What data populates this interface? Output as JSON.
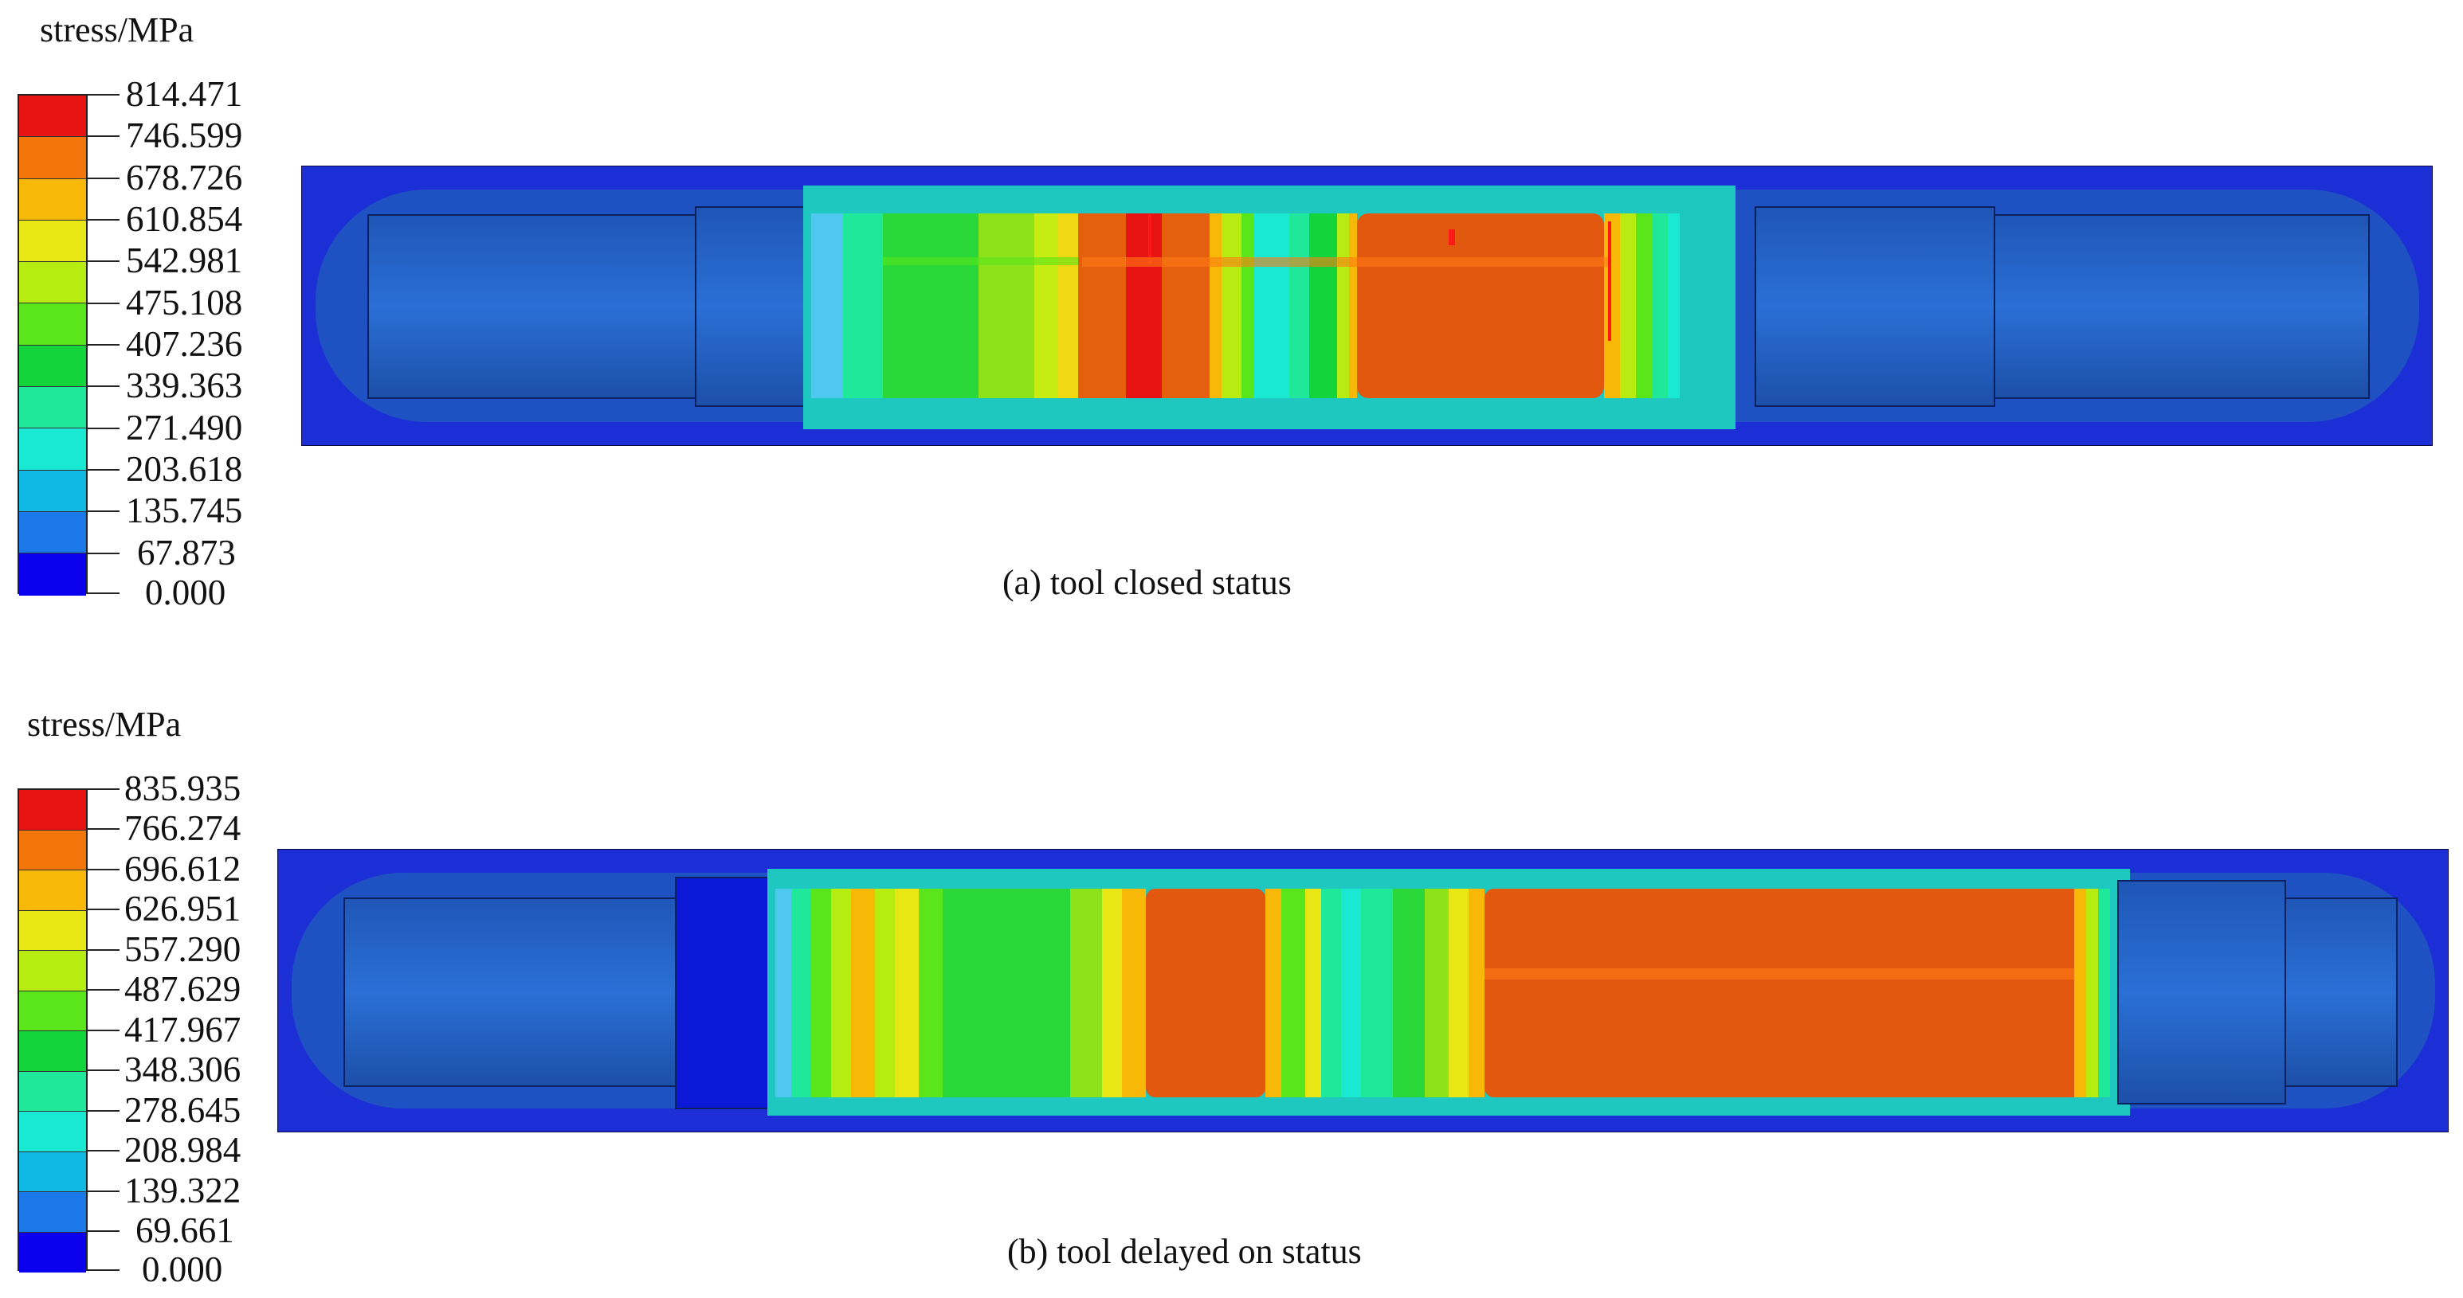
{
  "colors": {
    "scale": [
      "#0a00ee",
      "#0c3fe6",
      "#1a78e8",
      "#10b8e4",
      "#19e8d2",
      "#20e89a",
      "#13d43a",
      "#5ae61a",
      "#b6ec12",
      "#e8e614",
      "#f8b808",
      "#f2760a",
      "#e81414"
    ],
    "body_blue": "#1f47c8",
    "shaft_blue": "#1e5ab0",
    "deep_blue": "#0c18d8"
  },
  "panels": [
    {
      "legend_title": "stress/MPa",
      "legend_values": [
        "814.471",
        "746.599",
        "678.726",
        "610.854",
        "542.981",
        "475.108",
        "407.236",
        "339.363",
        "271.490",
        "203.618",
        "135.745",
        "67.873",
        "0.000"
      ],
      "caption": "(a) tool closed status"
    },
    {
      "legend_title": "stress/MPa",
      "legend_values": [
        "835.935",
        "766.274",
        "696.612",
        "626.951",
        "557.290",
        "487.629",
        "417.967",
        "348.306",
        "278.645",
        "208.984",
        "139.322",
        "69.661",
        "0.000"
      ],
      "caption": "(b) tool delayed on status"
    }
  ]
}
